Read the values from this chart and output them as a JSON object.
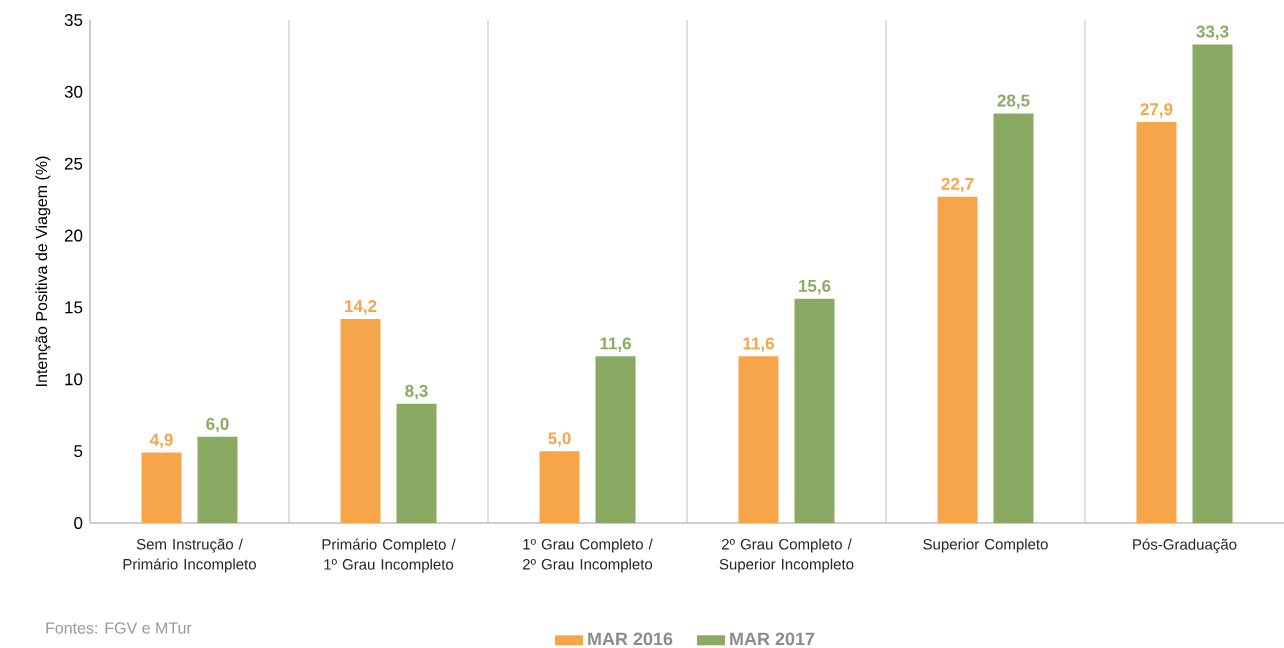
{
  "chart_data": {
    "type": "bar",
    "ylabel": "Intenção Positiva de Viagem (%)",
    "categories": [
      "Sem Instrução / Primário Incompleto",
      "Primário Completo / 1º Grau Incompleto",
      "1º Grau Completo / 2º Grau Incompleto",
      "2º Grau Completo / Superior Incompleto",
      "Superior Completo",
      "Pós-Graduação"
    ],
    "series": [
      {
        "name": "MAR 2016",
        "color": "#f7a54a",
        "values": [
          4.9,
          14.2,
          5.0,
          11.6,
          22.7,
          27.9
        ],
        "value_labels": [
          "4,9",
          "14,2",
          "5,0",
          "11,6",
          "22,7",
          "27,9"
        ]
      },
      {
        "name": "MAR  2017",
        "color": "#8aaa64",
        "values": [
          6.0,
          8.3,
          11.6,
          15.6,
          28.5,
          33.3
        ],
        "value_labels": [
          "6,0",
          "8,3",
          "11,6",
          "15,6",
          "28,5",
          "33,3"
        ]
      }
    ],
    "ylim": [
      0,
      35
    ],
    "yticks": [
      0,
      5,
      10,
      15,
      20,
      25,
      30,
      35
    ],
    "grid": "x",
    "legend": "bottom",
    "annotations": [
      "Fontes: FGV e MTur"
    ]
  }
}
